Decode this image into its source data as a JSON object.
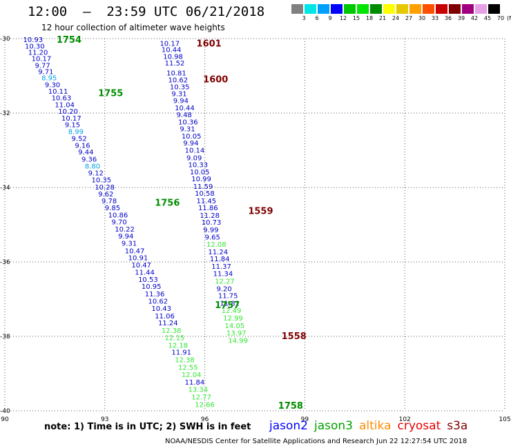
{
  "title": "12:00  –  23:59 UTC 06/21/2018",
  "subtitle": "12 hour collection of altimeter wave heights",
  "colorbar": {
    "colors": [
      "#808080",
      "#00e5e5",
      "#00a0ff",
      "#0000ff",
      "#00c800",
      "#00e600",
      "#008c00",
      "#ffff00",
      "#e6c800",
      "#ffa000",
      "#ff5000",
      "#c80000",
      "#800000",
      "#a00080",
      "#e6a0e6",
      "#000000"
    ],
    "labels": [
      "3",
      "6",
      "9",
      "12",
      "15",
      "18",
      "21",
      "24",
      "27",
      "30",
      "33",
      "36",
      "39",
      "42",
      "45",
      "70"
    ],
    "unit": "(ft)"
  },
  "axes": {
    "lon_ticks": [
      "90",
      "93",
      "96",
      "99",
      "102",
      "105"
    ],
    "lat_ticks": [
      "-30",
      "-32",
      "-34",
      "-36",
      "-38",
      "-40"
    ]
  },
  "note": "note:  1) Time is in UTC;  2) SWH is in feet",
  "legend": [
    {
      "name": "jason2",
      "color": "#0000ff"
    },
    {
      "name": "jason3",
      "color": "#00a000"
    },
    {
      "name": "altika",
      "color": "#ff8c00"
    },
    {
      "name": "cryosat",
      "color": "#e60000"
    },
    {
      "name": "s3a",
      "color": "#800000"
    }
  ],
  "credit": "NOAA/NESDIS Center for Satellite Applications and Research    Jun 22 12:27:54 UTC 2018",
  "chart_data": {
    "type": "scatter",
    "xlim": [
      90,
      105
    ],
    "ylim": [
      -40,
      -30
    ],
    "grid": true,
    "time_labels": [
      {
        "text": "1754",
        "color": "#008c00",
        "lon": 91.55,
        "lat": -30.02
      },
      {
        "text": "1755",
        "color": "#008c00",
        "lon": 92.8,
        "lat": -31.45
      },
      {
        "text": "1756",
        "color": "#008c00",
        "lon": 94.5,
        "lat": -34.4
      },
      {
        "text": "1757",
        "color": "#008c00",
        "lon": 96.3,
        "lat": -37.15
      },
      {
        "text": "1758",
        "color": "#008c00",
        "lon": 98.2,
        "lat": -39.85
      },
      {
        "text": "1601",
        "color": "#800000",
        "lon": 95.75,
        "lat": -30.12
      },
      {
        "text": "1600",
        "color": "#800000",
        "lon": 95.95,
        "lat": -31.08
      },
      {
        "text": "1559",
        "color": "#800000",
        "lon": 97.3,
        "lat": -34.62
      },
      {
        "text": "1558",
        "color": "#800000",
        "lon": 98.3,
        "lat": -37.98
      }
    ],
    "points": [
      {
        "v": "10.93",
        "c": "#0000c8",
        "lon": 90.55,
        "lat": -30.02
      },
      {
        "v": "10.30",
        "c": "#0000c8",
        "lon": 90.6,
        "lat": -30.19
      },
      {
        "v": "11.20",
        "c": "#0000c8",
        "lon": 90.7,
        "lat": -30.36
      },
      {
        "v": "10.17",
        "c": "#0000c8",
        "lon": 90.8,
        "lat": -30.53
      },
      {
        "v": "9.77",
        "c": "#0000c8",
        "lon": 90.9,
        "lat": -30.71
      },
      {
        "v": "9.71",
        "c": "#0000c8",
        "lon": 91.0,
        "lat": -30.88
      },
      {
        "v": "8.95",
        "c": "#00a0e6",
        "lon": 91.1,
        "lat": -31.05
      },
      {
        "v": "9.30",
        "c": "#0000c8",
        "lon": 91.2,
        "lat": -31.23
      },
      {
        "v": "10.11",
        "c": "#0000c8",
        "lon": 91.3,
        "lat": -31.41
      },
      {
        "v": "10.63",
        "c": "#0000c8",
        "lon": 91.4,
        "lat": -31.58
      },
      {
        "v": "11.04",
        "c": "#0000c8",
        "lon": 91.5,
        "lat": -31.77
      },
      {
        "v": "10.20",
        "c": "#0000c8",
        "lon": 91.6,
        "lat": -31.94
      },
      {
        "v": "10.17",
        "c": "#0000c8",
        "lon": 91.7,
        "lat": -32.13
      },
      {
        "v": "9.15",
        "c": "#0000c8",
        "lon": 91.8,
        "lat": -32.31
      },
      {
        "v": "8.99",
        "c": "#00a0e6",
        "lon": 91.9,
        "lat": -32.49
      },
      {
        "v": "9.52",
        "c": "#0000c8",
        "lon": 92.0,
        "lat": -32.68
      },
      {
        "v": "9.16",
        "c": "#0000c8",
        "lon": 92.1,
        "lat": -32.86
      },
      {
        "v": "9.44",
        "c": "#0000c8",
        "lon": 92.2,
        "lat": -33.04
      },
      {
        "v": "9.36",
        "c": "#0000c8",
        "lon": 92.3,
        "lat": -33.23
      },
      {
        "v": "8.80",
        "c": "#00a0e6",
        "lon": 92.4,
        "lat": -33.42
      },
      {
        "v": "9.12",
        "c": "#0000c8",
        "lon": 92.5,
        "lat": -33.6
      },
      {
        "v": "10.35",
        "c": "#0000c8",
        "lon": 92.6,
        "lat": -33.79
      },
      {
        "v": "10.28",
        "c": "#0000c8",
        "lon": 92.7,
        "lat": -33.98
      },
      {
        "v": "9.62",
        "c": "#0000c8",
        "lon": 92.8,
        "lat": -34.17
      },
      {
        "v": "9.78",
        "c": "#0000c8",
        "lon": 92.9,
        "lat": -34.35
      },
      {
        "v": "9.85",
        "c": "#0000c8",
        "lon": 93.0,
        "lat": -34.54
      },
      {
        "v": "10.86",
        "c": "#0000c8",
        "lon": 93.1,
        "lat": -34.73
      },
      {
        "v": "9.70",
        "c": "#0000c8",
        "lon": 93.2,
        "lat": -34.92
      },
      {
        "v": "10.22",
        "c": "#0000c8",
        "lon": 93.3,
        "lat": -35.11
      },
      {
        "v": "9.94",
        "c": "#0000c8",
        "lon": 93.4,
        "lat": -35.3
      },
      {
        "v": "9.31",
        "c": "#0000c8",
        "lon": 93.5,
        "lat": -35.49
      },
      {
        "v": "10.47",
        "c": "#0000c8",
        "lon": 93.6,
        "lat": -35.69
      },
      {
        "v": "10.91",
        "c": "#0000c8",
        "lon": 93.7,
        "lat": -35.88
      },
      {
        "v": "10.47",
        "c": "#0000c8",
        "lon": 93.8,
        "lat": -36.07
      },
      {
        "v": "11.44",
        "c": "#0000c8",
        "lon": 93.9,
        "lat": -36.27
      },
      {
        "v": "10.53",
        "c": "#0000c8",
        "lon": 94.0,
        "lat": -36.46
      },
      {
        "v": "10.95",
        "c": "#0000c8",
        "lon": 94.1,
        "lat": -36.65
      },
      {
        "v": "11.36",
        "c": "#0000c8",
        "lon": 94.2,
        "lat": -36.85
      },
      {
        "v": "10.62",
        "c": "#0000c8",
        "lon": 94.3,
        "lat": -37.05
      },
      {
        "v": "10.43",
        "c": "#0000c8",
        "lon": 94.4,
        "lat": -37.24
      },
      {
        "v": "11.06",
        "c": "#0000c8",
        "lon": 94.5,
        "lat": -37.44
      },
      {
        "v": "11.24",
        "c": "#0000c8",
        "lon": 94.6,
        "lat": -37.63
      },
      {
        "v": "12.38",
        "c": "#32e632",
        "lon": 94.7,
        "lat": -37.83
      },
      {
        "v": "12.15",
        "c": "#32e632",
        "lon": 94.8,
        "lat": -38.03
      },
      {
        "v": "12.18",
        "c": "#32e632",
        "lon": 94.9,
        "lat": -38.23
      },
      {
        "v": "11.91",
        "c": "#0000c8",
        "lon": 95.0,
        "lat": -38.42
      },
      {
        "v": "12.38",
        "c": "#32e632",
        "lon": 95.1,
        "lat": -38.62
      },
      {
        "v": "12.55",
        "c": "#32e632",
        "lon": 95.2,
        "lat": -38.82
      },
      {
        "v": "12.04",
        "c": "#32e632",
        "lon": 95.3,
        "lat": -39.02
      },
      {
        "v": "11.84",
        "c": "#0000c8",
        "lon": 95.4,
        "lat": -39.22
      },
      {
        "v": "13.34",
        "c": "#32e632",
        "lon": 95.5,
        "lat": -39.42
      },
      {
        "v": "12.77",
        "c": "#32e632",
        "lon": 95.6,
        "lat": -39.62
      },
      {
        "v": "12.66",
        "c": "#32e632",
        "lon": 95.7,
        "lat": -39.82
      },
      {
        "v": "10.17",
        "c": "#0000c8",
        "lon": 94.65,
        "lat": -30.12
      },
      {
        "v": "10.44",
        "c": "#0000c8",
        "lon": 94.7,
        "lat": -30.29
      },
      {
        "v": "10.98",
        "c": "#0000c8",
        "lon": 94.75,
        "lat": -30.47
      },
      {
        "v": "11.52",
        "c": "#0000c8",
        "lon": 94.8,
        "lat": -30.65
      },
      {
        "v": "10.81",
        "c": "#0000c8",
        "lon": 94.85,
        "lat": -30.92
      },
      {
        "v": "10.62",
        "c": "#0000c8",
        "lon": 94.9,
        "lat": -31.1
      },
      {
        "v": "10.35",
        "c": "#0000c8",
        "lon": 94.95,
        "lat": -31.29
      },
      {
        "v": "9.31",
        "c": "#0000c8",
        "lon": 95.0,
        "lat": -31.47
      },
      {
        "v": "9.94",
        "c": "#0000c8",
        "lon": 95.05,
        "lat": -31.66
      },
      {
        "v": "10.44",
        "c": "#0000c8",
        "lon": 95.1,
        "lat": -31.85
      },
      {
        "v": "9.48",
        "c": "#0000c8",
        "lon": 95.15,
        "lat": -32.04
      },
      {
        "v": "10.36",
        "c": "#0000c8",
        "lon": 95.2,
        "lat": -32.23
      },
      {
        "v": "9.31",
        "c": "#0000c8",
        "lon": 95.25,
        "lat": -32.42
      },
      {
        "v": "10.05",
        "c": "#0000c8",
        "lon": 95.3,
        "lat": -32.61
      },
      {
        "v": "9.94",
        "c": "#0000c8",
        "lon": 95.35,
        "lat": -32.8
      },
      {
        "v": "10.14",
        "c": "#0000c8",
        "lon": 95.4,
        "lat": -32.99
      },
      {
        "v": "9.09",
        "c": "#0000c8",
        "lon": 95.45,
        "lat": -33.19
      },
      {
        "v": "10.33",
        "c": "#0000c8",
        "lon": 95.5,
        "lat": -33.38
      },
      {
        "v": "10.05",
        "c": "#0000c8",
        "lon": 95.55,
        "lat": -33.57
      },
      {
        "v": "10.99",
        "c": "#0000c8",
        "lon": 95.6,
        "lat": -33.76
      },
      {
        "v": "11.59",
        "c": "#0000c8",
        "lon": 95.65,
        "lat": -33.96
      },
      {
        "v": "10.58",
        "c": "#0000c8",
        "lon": 95.7,
        "lat": -34.15
      },
      {
        "v": "11.45",
        "c": "#0000c8",
        "lon": 95.75,
        "lat": -34.35
      },
      {
        "v": "11.86",
        "c": "#0000c8",
        "lon": 95.8,
        "lat": -34.54
      },
      {
        "v": "11.28",
        "c": "#0000c8",
        "lon": 95.85,
        "lat": -34.74
      },
      {
        "v": "10.73",
        "c": "#0000c8",
        "lon": 95.9,
        "lat": -34.93
      },
      {
        "v": "9.99",
        "c": "#0000c8",
        "lon": 95.95,
        "lat": -35.13
      },
      {
        "v": "9.65",
        "c": "#0000c8",
        "lon": 96.0,
        "lat": -35.32
      },
      {
        "v": "12.08",
        "c": "#32e632",
        "lon": 96.05,
        "lat": -35.52
      },
      {
        "v": "11.24",
        "c": "#0000c8",
        "lon": 96.1,
        "lat": -35.72
      },
      {
        "v": "11.84",
        "c": "#0000c8",
        "lon": 96.15,
        "lat": -35.91
      },
      {
        "v": "11.37",
        "c": "#0000c8",
        "lon": 96.2,
        "lat": -36.11
      },
      {
        "v": "11.34",
        "c": "#0000c8",
        "lon": 96.25,
        "lat": -36.31
      },
      {
        "v": "12.27",
        "c": "#32e632",
        "lon": 96.3,
        "lat": -36.51
      },
      {
        "v": "9.20",
        "c": "#0000c8",
        "lon": 96.35,
        "lat": -36.71
      },
      {
        "v": "11.75",
        "c": "#0000c8",
        "lon": 96.4,
        "lat": -36.9
      },
      {
        "v": "11.81",
        "c": "#0000c8",
        "lon": 96.45,
        "lat": -37.1
      },
      {
        "v": "12.49",
        "c": "#32e632",
        "lon": 96.5,
        "lat": -37.3
      },
      {
        "v": "12.99",
        "c": "#32e632",
        "lon": 96.55,
        "lat": -37.5
      },
      {
        "v": "14.05",
        "c": "#32e632",
        "lon": 96.6,
        "lat": -37.7
      },
      {
        "v": "13.97",
        "c": "#32e632",
        "lon": 96.65,
        "lat": -37.9
      },
      {
        "v": "14.99",
        "c": "#32e632",
        "lon": 96.7,
        "lat": -38.1
      }
    ]
  }
}
